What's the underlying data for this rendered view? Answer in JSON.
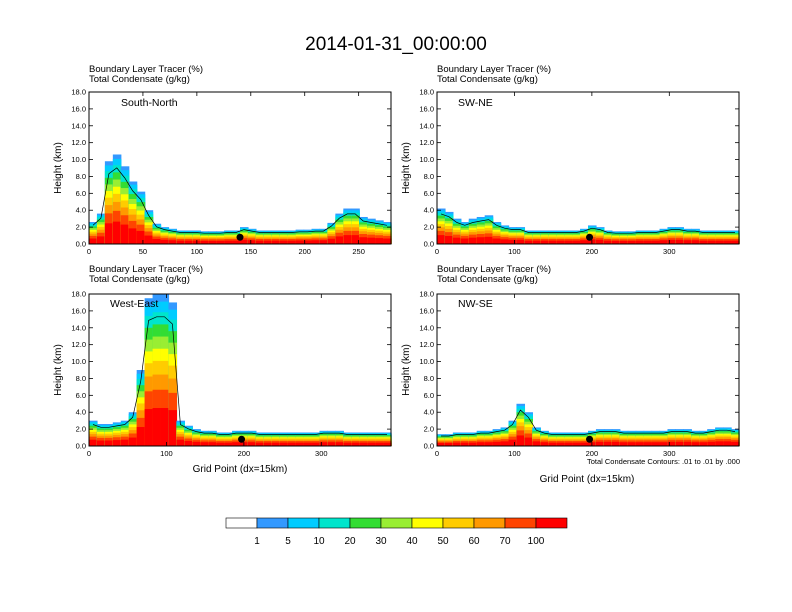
{
  "figure": {
    "title": "2014-01-31_00:00:00",
    "footnote": "Total Condensate Contours: .01 to .01 by .000"
  },
  "colorbar": {
    "colors": [
      "#ffffff",
      "#3399ff",
      "#00ccff",
      "#00e5cc",
      "#33dd33",
      "#99ee33",
      "#ffff00",
      "#ffcc00",
      "#ff9900",
      "#ff4400",
      "#ff0000"
    ],
    "labels": [
      "1",
      "5",
      "10",
      "20",
      "30",
      "40",
      "50",
      "60",
      "70",
      "100"
    ]
  },
  "chart_data": [
    {
      "type": "heatmap",
      "title": "South-North",
      "header_lines": [
        "Boundary Layer Tracer    (%)",
        "Total Condensate    (g/kg)"
      ],
      "xlabel": "",
      "ylabel": "Height (km)",
      "xlim": [
        0,
        280
      ],
      "ylim": [
        0,
        18
      ],
      "xticks": [
        0,
        50,
        100,
        150,
        200,
        250
      ],
      "yticks": [
        "0.0",
        "2.0",
        "4.0",
        "6.0",
        "8.0",
        "10.0",
        "12.0",
        "14.0",
        "16.0",
        "18.0"
      ],
      "marker_x": 140,
      "tracer_top_km": [
        2.6,
        3.6,
        9.8,
        10.6,
        9.2,
        7.4,
        6.2,
        4.0,
        2.4,
        2.0,
        1.8,
        1.6,
        1.6,
        1.6,
        1.5,
        1.5,
        1.5,
        1.6,
        1.6,
        2.0,
        1.8,
        1.6,
        1.6,
        1.6,
        1.6,
        1.6,
        1.7,
        1.7,
        1.8,
        1.8,
        2.5,
        3.6,
        4.2,
        4.2,
        3.2,
        3.0,
        2.8,
        2.6
      ]
    },
    {
      "type": "heatmap",
      "title": "SW-NE",
      "header_lines": [
        "Boundary Layer Tracer    (%)",
        "Total Condensate    (g/kg)"
      ],
      "xlabel": "",
      "ylabel": "Height (km)",
      "xlim": [
        0,
        390
      ],
      "ylim": [
        0,
        18
      ],
      "xticks": [
        0,
        100,
        200,
        300
      ],
      "yticks": [
        "0.0",
        "2.0",
        "4.0",
        "6.0",
        "8.0",
        "10.0",
        "12.0",
        "14.0",
        "16.0",
        "18.0"
      ],
      "marker_x": 197,
      "tracer_top_km": [
        4.2,
        3.8,
        3.0,
        2.6,
        3.0,
        3.2,
        3.4,
        2.6,
        2.2,
        2.0,
        2.0,
        1.6,
        1.6,
        1.6,
        1.6,
        1.6,
        1.6,
        1.6,
        1.8,
        2.2,
        2.0,
        1.6,
        1.5,
        1.5,
        1.5,
        1.6,
        1.6,
        1.6,
        1.8,
        2.0,
        2.0,
        1.8,
        1.8,
        1.6,
        1.6,
        1.6,
        1.6,
        1.6
      ]
    },
    {
      "type": "heatmap",
      "title": "West-East",
      "header_lines": [
        "Boundary Layer Tracer    (%)",
        "Total Condensate    (g/kg)"
      ],
      "xlabel": "Grid Point (dx=15km)",
      "ylabel": "Height (km)",
      "xlim": [
        0,
        390
      ],
      "ylim": [
        0,
        18
      ],
      "xticks": [
        0,
        100,
        200,
        300
      ],
      "yticks": [
        "0.0",
        "2.0",
        "4.0",
        "6.0",
        "8.0",
        "10.0",
        "12.0",
        "14.0",
        "16.0",
        "18.0"
      ],
      "marker_x": 197,
      "tracer_top_km": [
        3.0,
        2.6,
        2.6,
        2.8,
        3.0,
        4.0,
        9.0,
        17.5,
        18.0,
        18.0,
        17.0,
        3.0,
        2.4,
        2.0,
        1.8,
        1.8,
        1.6,
        1.6,
        1.8,
        1.8,
        1.8,
        1.6,
        1.6,
        1.6,
        1.6,
        1.6,
        1.6,
        1.6,
        1.6,
        1.8,
        1.8,
        1.8,
        1.6,
        1.6,
        1.6,
        1.6,
        1.6,
        1.6
      ]
    },
    {
      "type": "heatmap",
      "title": "NW-SE",
      "header_lines": [
        "Boundary Layer Tracer    (%)",
        "Total Condensate    (g/kg)"
      ],
      "xlabel": "Grid Point (dx=15km)",
      "ylabel": "Height (km)",
      "xlim": [
        0,
        390
      ],
      "ylim": [
        0,
        18
      ],
      "xticks": [
        0,
        100,
        200,
        300
      ],
      "yticks": [
        "0.0",
        "2.0",
        "4.0",
        "6.0",
        "8.0",
        "10.0",
        "12.0",
        "14.0",
        "16.0",
        "18.0"
      ],
      "marker_x": 197,
      "tracer_top_km": [
        1.4,
        1.4,
        1.6,
        1.6,
        1.6,
        1.8,
        1.8,
        2.0,
        2.2,
        3.0,
        5.0,
        4.0,
        2.2,
        1.8,
        1.6,
        1.6,
        1.6,
        1.6,
        1.6,
        1.8,
        2.0,
        2.0,
        2.0,
        1.8,
        1.8,
        1.8,
        1.8,
        1.8,
        1.8,
        2.0,
        2.0,
        2.0,
        1.8,
        1.8,
        2.0,
        2.2,
        2.2,
        2.0
      ]
    }
  ]
}
